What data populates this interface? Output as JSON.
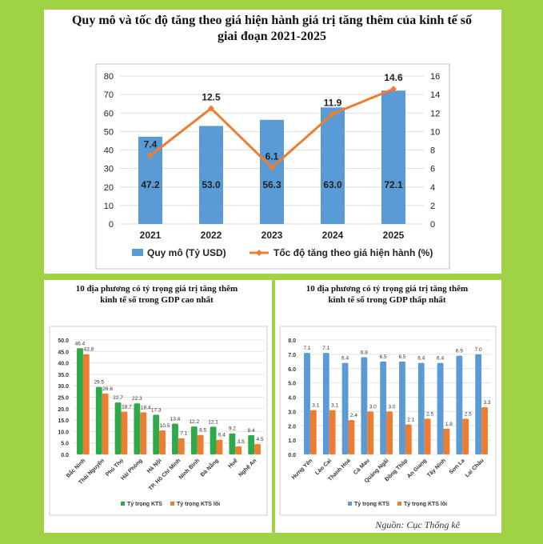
{
  "colors": {
    "background": "#9fd244",
    "bar_blue": "#5b9bd5",
    "line_orange": "#ed7d31",
    "bar_green": "#2eaa4a"
  },
  "source": "Nguồn: Cục Thống kê",
  "chart_data": [
    {
      "type": "bar+line",
      "title": "Quy mô và tốc độ tăng theo giá hiện hành giá trị tăng thêm của kinh tế số",
      "title2": "giai đoạn 2021-2025",
      "categories": [
        "2021",
        "2022",
        "2023",
        "2024",
        "2025"
      ],
      "series": [
        {
          "name": "Quy mô (Tỷ USD)",
          "type": "bar",
          "axis": "left",
          "values": [
            47.2,
            53.0,
            56.3,
            63.0,
            72.1
          ],
          "labels": [
            "47.2",
            "53.0",
            "56.3",
            "63.0",
            "72.1"
          ]
        },
        {
          "name": "Tốc độ tăng theo giá hiện hành (%)",
          "type": "line",
          "axis": "right",
          "values": [
            7.4,
            12.5,
            6.1,
            11.9,
            14.6
          ],
          "labels": [
            "7.4",
            "12.5",
            "6.1",
            "11.9",
            "14.6"
          ]
        }
      ],
      "ylim": [
        0,
        80
      ],
      "yticks": [
        "0",
        "10",
        "20",
        "30",
        "40",
        "50",
        "60",
        "70",
        "80"
      ],
      "y2lim": [
        0,
        16
      ],
      "y2ticks": [
        "0",
        "2",
        "4",
        "6",
        "8",
        "10",
        "12",
        "14",
        "16"
      ],
      "legend": "bottom"
    },
    {
      "type": "bar",
      "title": "10 địa phương có tỷ trọng giá trị tăng thêm",
      "title2": "kinh tế số trong GDP cao nhất",
      "categories": [
        "Bắc Ninh",
        "Thái Nguyên",
        "Phú Thọ",
        "Hải Phòng",
        "Hà Nội",
        "TP. Hồ Chí Minh",
        "Ninh Bình",
        "Đà Nẵng",
        "Huế",
        "Nghệ An"
      ],
      "series": [
        {
          "name": "Tỷ trọng KTS",
          "values": [
            46.4,
            29.5,
            22.7,
            22.3,
            17.3,
            13.4,
            12.2,
            12.1,
            9.2,
            8.4
          ],
          "labels": [
            "46.4",
            "29.5",
            "22.7",
            "22.3",
            "17.3",
            "13.4",
            "12.2",
            "12.1",
            "9.2",
            "8.4"
          ]
        },
        {
          "name": "Tỷ trọng KTS lõi",
          "values": [
            43.8,
            26.6,
            18.7,
            18.4,
            10.5,
            7.1,
            8.5,
            6.4,
            3.5,
            4.5
          ],
          "labels": [
            "43.8",
            "26.6",
            "18.7",
            "18.4",
            "10.5",
            "7.1",
            "8.5",
            "6.4",
            "3.5",
            "4.5"
          ]
        }
      ],
      "ylim": [
        0,
        50
      ],
      "yticks": [
        "0.0",
        "5.0",
        "10.0",
        "15.0",
        "20.0",
        "25.0",
        "30.0",
        "35.0",
        "40.0",
        "45.0",
        "50.0"
      ],
      "legend": "bottom"
    },
    {
      "type": "bar",
      "title": "10 địa phương có tỷ trọng giá trị tăng thêm",
      "title2": "kinh tế số trong GDP thấp nhất",
      "categories": [
        "Hưng Yên",
        "Lào Cai",
        "Thanh Hoá",
        "Cà Mau",
        "Quảng Ngãi",
        "Đồng Tháp",
        "An Giang",
        "Tây Ninh",
        "Sơn La",
        "Lai Châu"
      ],
      "series": [
        {
          "name": "Tỷ trọng KTS",
          "values": [
            7.1,
            7.1,
            6.4,
            6.8,
            6.5,
            6.5,
            6.4,
            6.4,
            6.9,
            7.0
          ],
          "labels": [
            "7.1",
            "7.1",
            "6.4",
            "6.8",
            "6.5",
            "6.5",
            "6.4",
            "6.4",
            "6.9",
            "7.0"
          ]
        },
        {
          "name": "Tỷ trọng KTS lõi",
          "values": [
            3.1,
            3.1,
            2.4,
            3.0,
            3.0,
            2.1,
            2.5,
            1.8,
            2.5,
            3.3
          ],
          "labels": [
            "3.1",
            "3.1",
            "2.4",
            "3.0",
            "3.0",
            "2.1",
            "2.5",
            "1.8",
            "2.5",
            "3.3"
          ]
        }
      ],
      "ylim": [
        0,
        8
      ],
      "yticks": [
        "0.0",
        "1.0",
        "2.0",
        "3.0",
        "4.0",
        "5.0",
        "6.0",
        "7.0",
        "8.0"
      ],
      "legend": "bottom"
    }
  ]
}
